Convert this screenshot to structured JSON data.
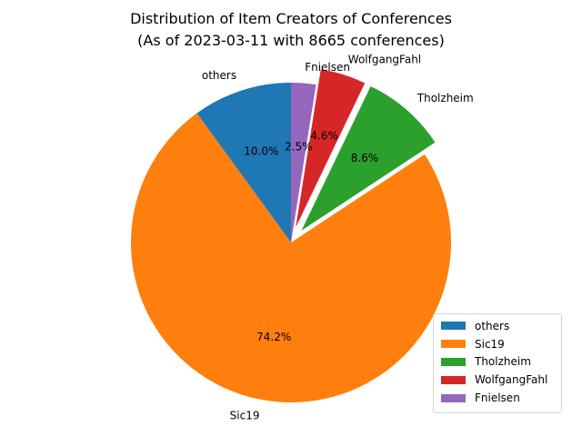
{
  "chart_data": {
    "type": "pie",
    "title": [
      "Distribution of Item Creators of Conferences",
      "(As of 2023-03-11 with 8665 conferences)"
    ],
    "slices": [
      {
        "label": "others",
        "percent": 10.0,
        "percent_label": "10.0%",
        "color": "#1f77b4",
        "exploded": false
      },
      {
        "label": "Sic19",
        "percent": 74.2,
        "percent_label": "74.2%",
        "color": "#ff7f0e",
        "exploded": false
      },
      {
        "label": "Tholzheim",
        "percent": 8.6,
        "percent_label": "8.6%",
        "color": "#2ca02c",
        "exploded": true
      },
      {
        "label": "WolfgangFahl",
        "percent": 4.6,
        "percent_label": "4.6%",
        "color": "#d62728",
        "exploded": true
      },
      {
        "label": "Fnielsen",
        "percent": 2.5,
        "percent_label": "2.5%",
        "color": "#9467bd",
        "exploded": false
      }
    ],
    "start_angle_deg": 90,
    "direction": "counterclockwise",
    "legend_position": "lower-right"
  }
}
